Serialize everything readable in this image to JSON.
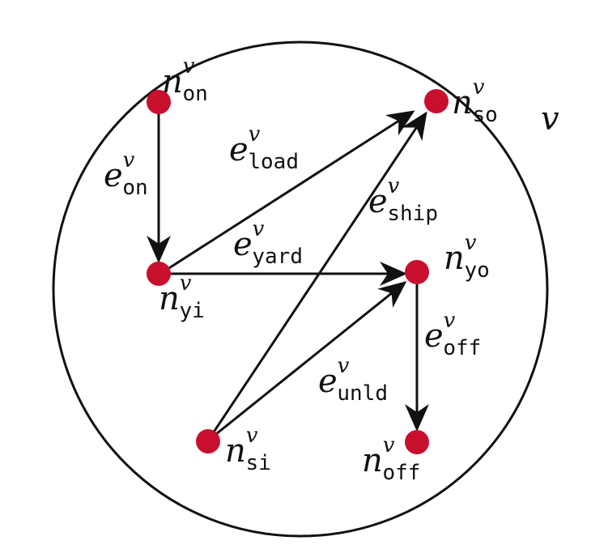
{
  "container": {
    "label": "v"
  },
  "nodes": {
    "on": {
      "base": "n",
      "sup": "v",
      "sub": "on"
    },
    "so": {
      "base": "n",
      "sup": "v",
      "sub": "so"
    },
    "yi": {
      "base": "n",
      "sup": "v",
      "sub": "yi"
    },
    "yo": {
      "base": "n",
      "sup": "v",
      "sub": "yo"
    },
    "si": {
      "base": "n",
      "sup": "v",
      "sub": "si"
    },
    "off": {
      "base": "n",
      "sup": "v",
      "sub": "off"
    }
  },
  "edges": {
    "on": {
      "base": "e",
      "sup": "v",
      "sub": "on",
      "from": "on",
      "to": "yi"
    },
    "load": {
      "base": "e",
      "sup": "v",
      "sub": "load",
      "from": "yi",
      "to": "so"
    },
    "yard": {
      "base": "e",
      "sup": "v",
      "sub": "yard",
      "from": "yi",
      "to": "yo"
    },
    "ship": {
      "base": "e",
      "sup": "v",
      "sub": "ship",
      "from": "si",
      "to": "so"
    },
    "unld": {
      "base": "e",
      "sup": "v",
      "sub": "unld",
      "from": "si",
      "to": "yo"
    },
    "off": {
      "base": "e",
      "sup": "v",
      "sub": "off",
      "from": "yo",
      "to": "off"
    }
  },
  "colors": {
    "node": "#c8102e",
    "stroke": "#111111"
  }
}
